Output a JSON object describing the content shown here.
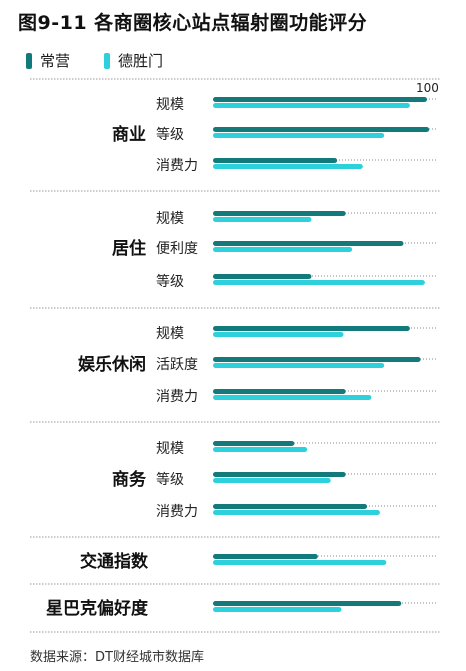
{
  "title": "图9-11 各商圈核心站点辐射圈功能评分",
  "source": "数据来源：DT财经城市数据库",
  "colors": {
    "s1": "#137a7c",
    "s2": "#2ed0dc",
    "divider": "#9a9a9a",
    "dots": "#888888"
  },
  "chart_data": {
    "type": "bar",
    "orientation": "horizontal",
    "xlim": [
      0,
      100
    ],
    "max_tick_label": "100",
    "series": [
      {
        "name": "常营",
        "color": "#137a7c"
      },
      {
        "name": "德胜门",
        "color": "#2ed0dc"
      }
    ],
    "groups": [
      {
        "name": "商业",
        "items": [
          {
            "label": "规模",
            "values": [
              100,
              92
            ]
          },
          {
            "label": "等级",
            "values": [
              101,
              80
            ]
          },
          {
            "label": "消费力",
            "values": [
              58,
              70
            ]
          }
        ]
      },
      {
        "name": "居住",
        "items": [
          {
            "label": "规模",
            "values": [
              62,
              46
            ]
          },
          {
            "label": "便利度",
            "values": [
              89,
              65
            ]
          },
          {
            "label": "等级",
            "values": [
              46,
              99
            ]
          }
        ]
      },
      {
        "name": "娱乐休闲",
        "items": [
          {
            "label": "规模",
            "values": [
              92,
              61
            ]
          },
          {
            "label": "活跃度",
            "values": [
              97,
              80
            ]
          },
          {
            "label": "消费力",
            "values": [
              62,
              74
            ]
          }
        ]
      },
      {
        "name": "商务",
        "items": [
          {
            "label": "规模",
            "values": [
              38,
              44
            ]
          },
          {
            "label": "等级",
            "values": [
              62,
              55
            ]
          },
          {
            "label": "消费力",
            "values": [
              72,
              78
            ]
          }
        ]
      },
      {
        "name": "交通指数",
        "items": [
          {
            "label": "",
            "values": [
              49,
              81
            ]
          }
        ]
      },
      {
        "name": "星巴克偏好度",
        "items": [
          {
            "label": "",
            "values": [
              88,
              60
            ]
          }
        ]
      }
    ]
  }
}
